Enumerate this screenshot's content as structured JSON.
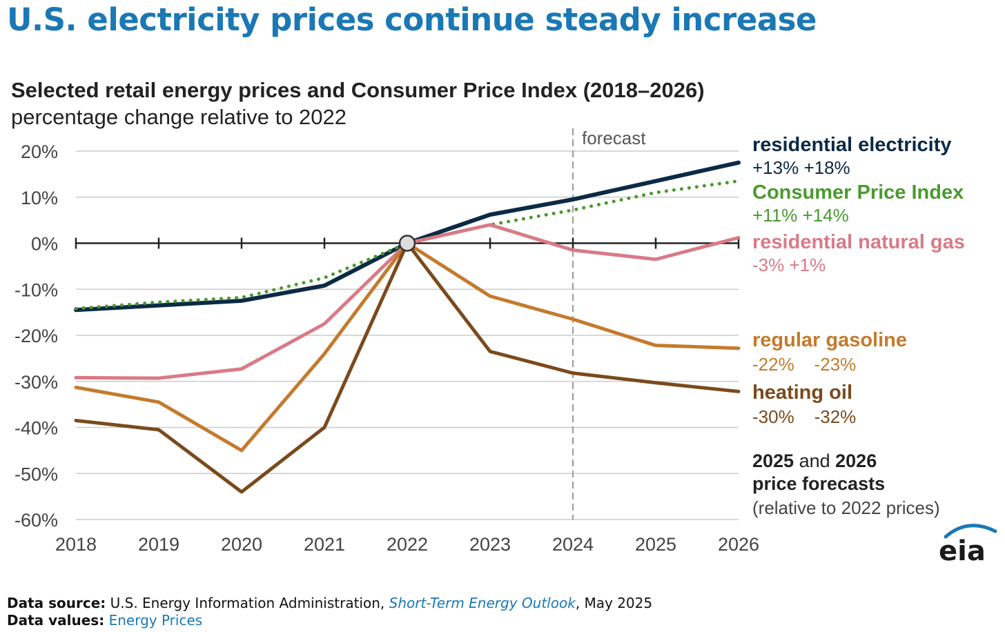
{
  "headline": "U.S. electricity prices continue steady increase",
  "footer": {
    "source_label": "Data source:",
    "source_text": "U.S. Energy Information Administration,",
    "source_link": "Short-Term Energy Outlook",
    "source_date": ", May 2025",
    "values_label": "Data values:",
    "values_link": "Energy Prices"
  },
  "logo_text": "eia",
  "colors": {
    "headline": "#1a78b5",
    "electricity": "#0b2a45",
    "cpi": "#4a9a2e",
    "natural_gas": "#d97a87",
    "gasoline": "#c47a2c",
    "heating_oil": "#7a4a1c",
    "grid": "#cccccc",
    "zero_axis": "#222222",
    "forecast_line": "#999999"
  },
  "chart_data": {
    "type": "line",
    "title": "Selected retail energy prices and Consumer Price Index (2018–2026)",
    "subtitle": "percentage change relative to 2022",
    "x": [
      "2018",
      "2019",
      "2020",
      "2021",
      "2022",
      "2023",
      "2024",
      "2025",
      "2026"
    ],
    "ylim": [
      -60,
      20
    ],
    "yticks": [
      20,
      10,
      0,
      -10,
      -20,
      -30,
      -40,
      -50,
      -60
    ],
    "ytick_labels": [
      "20%",
      "10%",
      "0%",
      "-10%",
      "-20%",
      "-30%",
      "-40%",
      "-50%",
      "-60%"
    ],
    "grid": true,
    "forecast_start": "2024",
    "forecast_label": "forecast",
    "reference_point": {
      "x": "2022",
      "y": 0
    },
    "series": [
      {
        "key": "electricity",
        "name": "residential electricity",
        "values": [
          -14.5,
          -13.5,
          -12.5,
          -9.2,
          0,
          6.2,
          9.5,
          13.5,
          17.5
        ],
        "style": "solid",
        "label_values": "+13% +18%"
      },
      {
        "key": "cpi",
        "name": "Consumer Price Index",
        "values": [
          -14.2,
          -12.8,
          -11.8,
          -7.5,
          0,
          4.0,
          7.2,
          11.0,
          13.5
        ],
        "style": "dotted",
        "label_values": "+11% +14%"
      },
      {
        "key": "natural_gas",
        "name": "residential natural gas",
        "values": [
          -29.2,
          -29.3,
          -27.3,
          -17.5,
          0,
          4.0,
          -1.5,
          -3.5,
          1.2
        ],
        "style": "solid",
        "label_values": "-3% +1%"
      },
      {
        "key": "gasoline",
        "name": "regular gasoline",
        "values": [
          -31.3,
          -34.5,
          -45.0,
          -24.0,
          0,
          -11.5,
          -16.5,
          -22.2,
          -22.8
        ],
        "style": "solid",
        "label_values": "-22%    -23%"
      },
      {
        "key": "heating_oil",
        "name": "heating oil",
        "values": [
          -38.5,
          -40.5,
          -54.0,
          -40.0,
          0,
          -23.5,
          -28.2,
          -30.3,
          -32.2
        ],
        "style": "solid",
        "label_values": "-30%    -32%"
      }
    ],
    "note": {
      "year1": "2025",
      "and_text": " and ",
      "year2": "2026",
      "line2": "price forecasts",
      "line3": "(relative to 2022 prices)"
    }
  }
}
